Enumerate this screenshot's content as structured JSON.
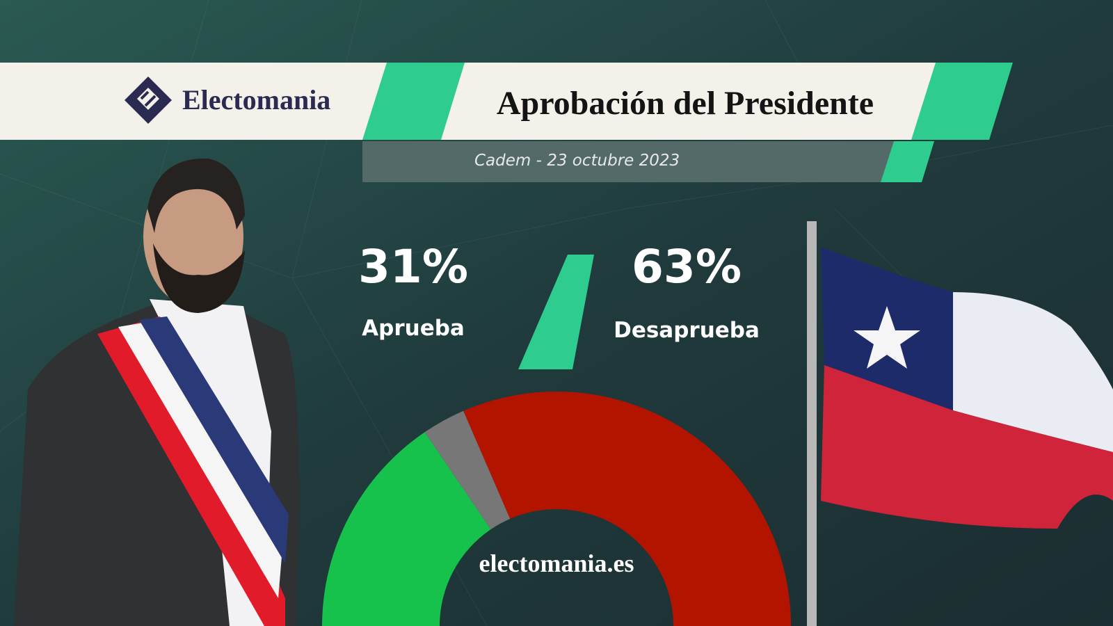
{
  "brand": "Electomania",
  "watermark": "electomania.es",
  "chart_data": {
    "type": "half-donut",
    "title": "Aprobación del Presidente",
    "subtitle": "Cadem  - 23 octubre 2023",
    "categories": [
      "Aprueba",
      null,
      "Desaprueba"
    ],
    "values": [
      31,
      6,
      63
    ],
    "value_labels": [
      "31%",
      null,
      "63%"
    ],
    "colors": [
      "#16c24c",
      "#777777",
      "#b31400"
    ]
  }
}
